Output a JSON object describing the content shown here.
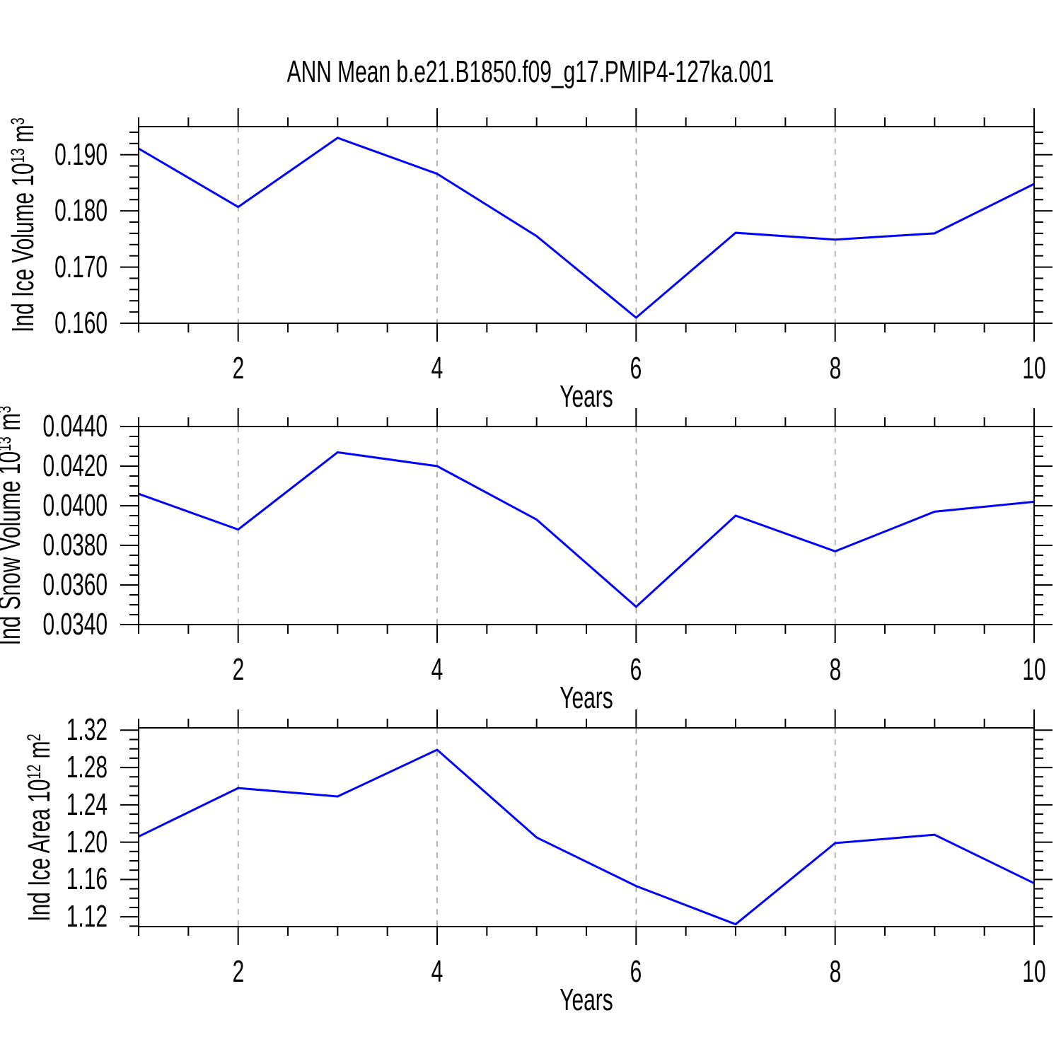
{
  "title": "ANN Mean b.e21.B1850.f09_g17.PMIP4-127ka.001",
  "colors": {
    "line": "#0000ff",
    "axis": "#000000",
    "grid": "#999999",
    "background": "#ffffff"
  },
  "chart_data": {
    "type": "line",
    "title": "ANN Mean b.e21.B1850.f09_g17.PMIP4-127ka.001",
    "x": [
      1,
      2,
      3,
      4,
      5,
      6,
      7,
      8,
      9,
      10
    ],
    "xlabel": "Years",
    "xlim": [
      1,
      10
    ],
    "xticks_labeled": [
      2,
      4,
      6,
      8,
      10
    ],
    "xtick_labels": [
      "2",
      "4",
      "6",
      "8",
      "10"
    ],
    "xtick_minor_step": 0.5,
    "grid_x": [
      2,
      4,
      6,
      8
    ],
    "legend": "none",
    "panels": [
      {
        "id": "ice-volume",
        "ylabel_text": "Ind Ice Volume 10^13 m^3",
        "ylabel": {
          "base1": "Ind Ice Volume 10",
          "sup1": "13",
          "base2": " m",
          "sup2": "3"
        },
        "series_name": "Ind Ice Volume",
        "values": [
          0.1911,
          0.1807,
          0.193,
          0.1866,
          0.1755,
          0.161,
          0.1761,
          0.1749,
          0.176,
          0.1848
        ],
        "ylim": [
          0.16,
          0.195
        ],
        "yticks": [
          0.16,
          0.17,
          0.18,
          0.19
        ],
        "ytick_labels": [
          "0.160",
          "0.170",
          "0.180",
          "0.190"
        ],
        "ytick_minor_step": 0.002
      },
      {
        "id": "snow-volume",
        "ylabel_text": "Ind Snow Volume 10^13 m^3",
        "ylabel": {
          "base1": "Ind Snow Volume 10",
          "sup1": "13",
          "base2": " m",
          "sup2": "3"
        },
        "series_name": "Ind Snow Volume",
        "values": [
          0.0406,
          0.0388,
          0.0427,
          0.042,
          0.0393,
          0.0349,
          0.0395,
          0.0377,
          0.0397,
          0.0402
        ],
        "ylim": [
          0.034,
          0.044
        ],
        "yticks": [
          0.034,
          0.036,
          0.038,
          0.04,
          0.042,
          0.044
        ],
        "ytick_labels": [
          "0.0340",
          "0.0360",
          "0.0380",
          "0.0400",
          "0.0420",
          "0.0440"
        ],
        "ytick_minor_step": 0.0005
      },
      {
        "id": "ice-area",
        "ylabel_text": "Ind Ice Area 10^12 m^2",
        "ylabel": {
          "base1": "Ind Ice Area 10",
          "sup1": "12",
          "base2": " m",
          "sup2": "2"
        },
        "series_name": "Ind Ice Area",
        "values": [
          1.206,
          1.258,
          1.249,
          1.299,
          1.205,
          1.153,
          1.112,
          1.199,
          1.208,
          1.156
        ],
        "ylim": [
          1.1095,
          1.3225
        ],
        "yticks": [
          1.12,
          1.16,
          1.2,
          1.24,
          1.28,
          1.32
        ],
        "ytick_labels": [
          "1.12",
          "1.16",
          "1.20",
          "1.24",
          "1.28",
          "1.32"
        ],
        "ytick_minor_step": 0.01
      }
    ]
  }
}
